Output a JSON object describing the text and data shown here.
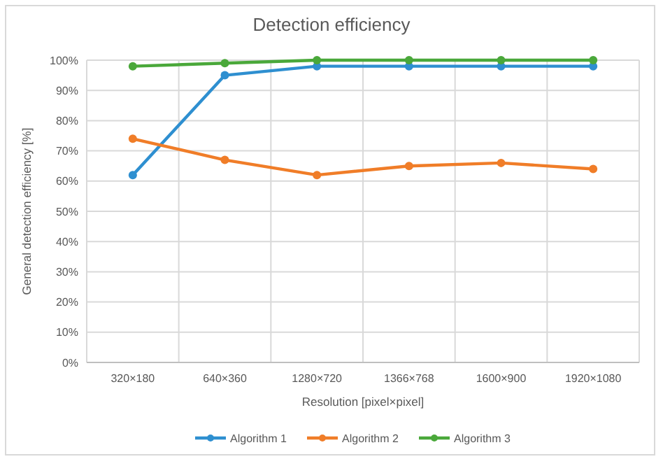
{
  "chart_data": {
    "type": "line",
    "title": "Detection efficiency",
    "xlabel": "Resolution [pixel×pixel]",
    "ylabel": "General detection efficiency [%]",
    "categories": [
      "320×180",
      "640×360",
      "1280×720",
      "1366×768",
      "1600×900",
      "1920×1080"
    ],
    "series": [
      {
        "name": "Algorithm 1",
        "color": "#2e8fd0",
        "values": [
          62,
          95,
          98,
          98,
          98,
          98
        ]
      },
      {
        "name": "Algorithm 2",
        "color": "#f07d28",
        "values": [
          74,
          67,
          62,
          65,
          66,
          64
        ]
      },
      {
        "name": "Algorithm 3",
        "color": "#4aa83a",
        "values": [
          98,
          99,
          100,
          100,
          100,
          100
        ]
      }
    ],
    "ylim": [
      0,
      100
    ],
    "yticks": [
      {
        "value": 0,
        "label": "0%"
      },
      {
        "value": 10,
        "label": "10%"
      },
      {
        "value": 20,
        "label": "20%"
      },
      {
        "value": 30,
        "label": "30%"
      },
      {
        "value": 40,
        "label": "40%"
      },
      {
        "value": 50,
        "label": "50%"
      },
      {
        "value": 60,
        "label": "60%"
      },
      {
        "value": 70,
        "label": "70%"
      },
      {
        "value": 80,
        "label": "80%"
      },
      {
        "value": 90,
        "label": "90%"
      },
      {
        "value": 100,
        "label": "100%"
      }
    ],
    "grid": true,
    "legend": "bottom",
    "marker": "circle",
    "line_style": "solid"
  }
}
